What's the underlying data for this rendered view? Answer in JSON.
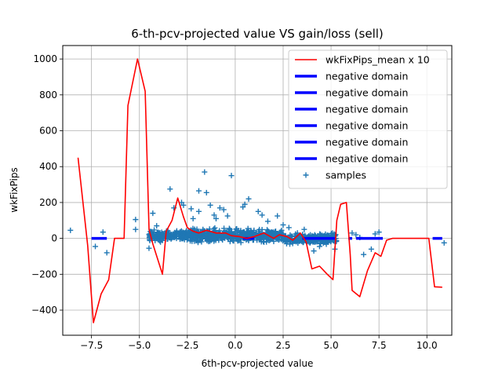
{
  "chart_data": {
    "type": "line",
    "title": "6-th-pcv-projected value VS gain/loss (sell)",
    "xlabel": "6th-pcv-projected value",
    "ylabel": "wkFixPips",
    "xlim": [
      -9.0,
      11.3
    ],
    "ylim": [
      -540,
      1075
    ],
    "xticks": [
      -7.5,
      -5.0,
      -2.5,
      0.0,
      2.5,
      5.0,
      7.5,
      10.0
    ],
    "xtick_labels": [
      "−7.5",
      "−5.0",
      "−2.5",
      "0.0",
      "2.5",
      "5.0",
      "7.5",
      "10.0"
    ],
    "yticks": [
      -400,
      -200,
      0,
      200,
      400,
      600,
      800,
      1000
    ],
    "ytick_labels": [
      "−400",
      "−200",
      "0",
      "200",
      "400",
      "600",
      "800",
      "1000"
    ],
    "grid": true,
    "legend_position": "top-right",
    "series": [
      {
        "name": "wkFixPips_mean x 10",
        "kind": "line",
        "color": "#ff0000",
        "points": [
          [
            -8.2,
            450
          ],
          [
            -7.7,
            -40
          ],
          [
            -7.4,
            -470
          ],
          [
            -7.0,
            -310
          ],
          [
            -6.6,
            -230
          ],
          [
            -6.3,
            0
          ],
          [
            -5.8,
            0
          ],
          [
            -5.6,
            740
          ],
          [
            -5.1,
            1000
          ],
          [
            -4.7,
            820
          ],
          [
            -4.5,
            50
          ],
          [
            -4.3,
            -30
          ],
          [
            -3.8,
            -200
          ],
          [
            -3.6,
            40
          ],
          [
            -3.3,
            100
          ],
          [
            -3.0,
            225
          ],
          [
            -2.7,
            120
          ],
          [
            -2.5,
            60
          ],
          [
            -2.2,
            40
          ],
          [
            -1.9,
            30
          ],
          [
            -1.5,
            45
          ],
          [
            -1.0,
            30
          ],
          [
            -0.5,
            30
          ],
          [
            -0.2,
            15
          ],
          [
            0.2,
            10
          ],
          [
            0.6,
            0
          ],
          [
            1.0,
            10
          ],
          [
            1.5,
            30
          ],
          [
            2.0,
            0
          ],
          [
            2.3,
            20
          ],
          [
            2.7,
            10
          ],
          [
            3.0,
            -10
          ],
          [
            3.4,
            30
          ],
          [
            3.7,
            -20
          ],
          [
            4.0,
            -170
          ],
          [
            4.4,
            -155
          ],
          [
            4.8,
            -200
          ],
          [
            5.1,
            -230
          ],
          [
            5.3,
            100
          ],
          [
            5.5,
            190
          ],
          [
            5.8,
            200
          ],
          [
            6.0,
            -90
          ],
          [
            6.1,
            -290
          ],
          [
            6.5,
            -325
          ],
          [
            6.9,
            -180
          ],
          [
            7.3,
            -80
          ],
          [
            7.6,
            -100
          ],
          [
            7.9,
            -10
          ],
          [
            8.2,
            0
          ],
          [
            10.1,
            0
          ],
          [
            10.4,
            -270
          ],
          [
            10.8,
            -272
          ]
        ]
      },
      {
        "name": "negative domain",
        "kind": "segments",
        "color": "#0000ff",
        "segments": [
          [
            -7.5,
            -6.7
          ],
          [
            0.4,
            1.0
          ],
          [
            3.5,
            5.2
          ],
          [
            5.9,
            6.1
          ],
          [
            6.3,
            7.7
          ],
          [
            10.3,
            10.8
          ]
        ]
      },
      {
        "name": "samples",
        "kind": "scatter",
        "marker": "+",
        "color": "#1f77b4",
        "points": [
          [
            -8.6,
            45
          ],
          [
            -7.3,
            -45
          ],
          [
            -6.9,
            35
          ],
          [
            -6.7,
            -80
          ],
          [
            -5.2,
            105
          ],
          [
            -5.2,
            50
          ],
          [
            -4.5,
            -55
          ],
          [
            -4.3,
            140
          ],
          [
            -4.1,
            70
          ],
          [
            -3.9,
            -20
          ],
          [
            -3.4,
            275
          ],
          [
            -3.2,
            170
          ],
          [
            -2.8,
            200
          ],
          [
            -2.7,
            185
          ],
          [
            -2.3,
            165
          ],
          [
            -2.2,
            110
          ],
          [
            -1.9,
            265
          ],
          [
            -1.9,
            150
          ],
          [
            -1.6,
            370
          ],
          [
            -1.5,
            255
          ],
          [
            -1.3,
            185
          ],
          [
            -1.1,
            130
          ],
          [
            -1.0,
            110
          ],
          [
            -0.8,
            170
          ],
          [
            -0.6,
            160
          ],
          [
            -0.4,
            125
          ],
          [
            -0.2,
            350
          ],
          [
            0.4,
            175
          ],
          [
            0.5,
            190
          ],
          [
            0.7,
            220
          ],
          [
            1.2,
            150
          ],
          [
            1.4,
            130
          ],
          [
            1.7,
            95
          ],
          [
            2.2,
            125
          ],
          [
            2.5,
            75
          ],
          [
            2.8,
            60
          ],
          [
            3.6,
            50
          ],
          [
            3.9,
            -25
          ],
          [
            4.1,
            -70
          ],
          [
            4.4,
            -45
          ],
          [
            5.0,
            -15
          ],
          [
            5.2,
            -60
          ],
          [
            6.1,
            30
          ],
          [
            6.3,
            20
          ],
          [
            6.5,
            5
          ],
          [
            6.7,
            -90
          ],
          [
            7.1,
            -60
          ],
          [
            7.3,
            25
          ],
          [
            7.5,
            35
          ],
          [
            10.9,
            -25
          ]
        ]
      }
    ]
  }
}
